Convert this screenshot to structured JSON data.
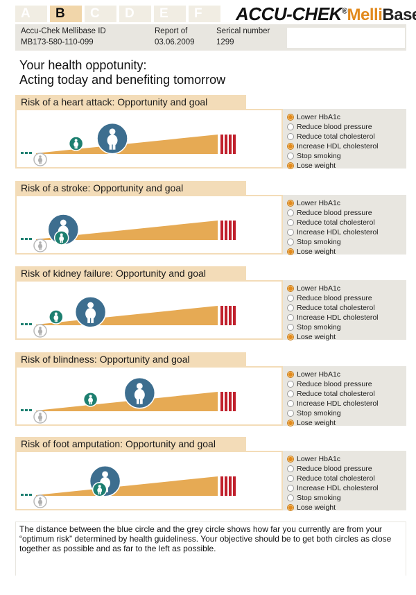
{
  "tabs": [
    "A",
    "B",
    "C",
    "D",
    "E",
    "F"
  ],
  "active_tab": "B",
  "logo": {
    "brand": "ACCU-CHEK",
    "registered": "®",
    "product_a": "Melli",
    "product_b": "Base"
  },
  "info": {
    "id_label": "Accu-Chek Mellibase ID",
    "id_value": "MB173-580-110-099",
    "report_label": "Report of",
    "report_value": "03.06.2009",
    "serial_label": "Serical number",
    "serial_value": "1299"
  },
  "headline": [
    "Your health oppotunity:",
    "Acting today and benefiting tomorrow"
  ],
  "options": [
    "Lower HbA1c",
    "Reduce blood pressure",
    "Reduce total cholesterol",
    "Increase HDL cholesterol",
    "Stop smoking",
    "Lose weight"
  ],
  "sections": [
    {
      "title": "Risk of a heart attack: Opportunity and goal",
      "selected": [
        true,
        false,
        false,
        true,
        false,
        true
      ],
      "current_risk": 0.42,
      "goal_risk": 0.22
    },
    {
      "title": "Risk of a stroke: Opportunity and goal",
      "selected": [
        true,
        false,
        false,
        false,
        false,
        true
      ],
      "current_risk": 0.15,
      "goal_risk": 0.14
    },
    {
      "title": "Risk of kidney failure: Opportunity and goal",
      "selected": [
        true,
        false,
        false,
        false,
        false,
        true
      ],
      "current_risk": 0.3,
      "goal_risk": 0.11
    },
    {
      "title": "Risk of blindness: Opportunity and goal",
      "selected": [
        true,
        false,
        false,
        false,
        false,
        true
      ],
      "current_risk": 0.57,
      "goal_risk": 0.3
    },
    {
      "title": "Risk of foot amputation: Opportunity and goal",
      "selected": [
        true,
        false,
        false,
        false,
        false,
        true
      ],
      "current_risk": 0.38,
      "goal_risk": 0.35
    }
  ],
  "footer": "The distance between the blue circle and the grey circle shows how far you currently are from your “optimum risk” determined by health guideliness. Your objective should be to get both circles as close together as possible and as far to the left as possible.",
  "colors": {
    "accent": "#e28a1e",
    "header_bg": "#f3dcb8",
    "panel_bg": "#e8e6e0",
    "blue_circle": "#3d6e8f",
    "green_circle": "#1d7f70",
    "red_bar": "#c0202c",
    "wedge": "#e6aa54"
  }
}
